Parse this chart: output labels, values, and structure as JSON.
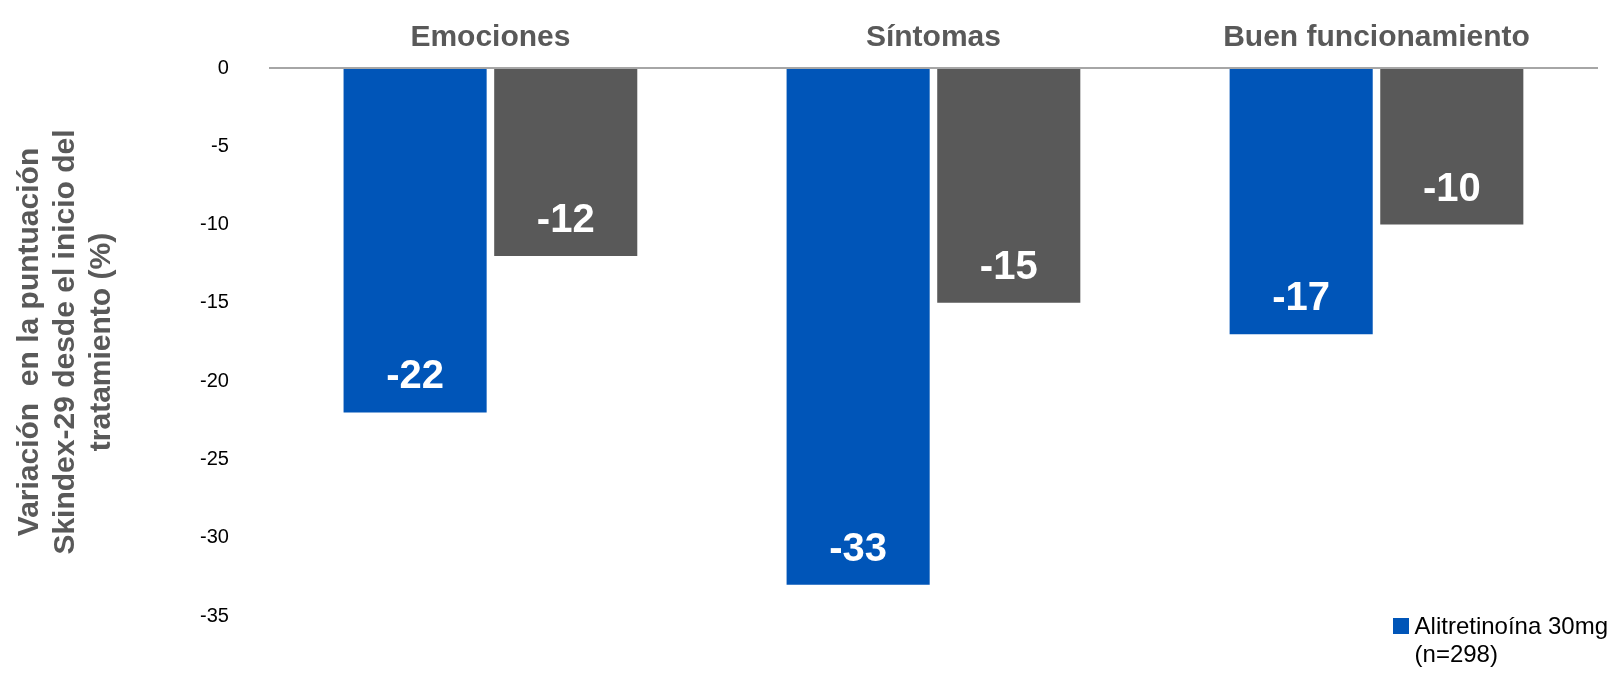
{
  "chart_data": {
    "type": "bar",
    "ylabel": "Variación  en la puntuación\nSkindex-29 desde el inicio del\ntratamiento (%)",
    "categories": [
      "Emociones",
      "Síntomas",
      "Buen funcionamiento"
    ],
    "series": [
      {
        "name": "Alitretinoína 30mg\n(n=298)",
        "color": "#0055b8",
        "values": [
          -22,
          -33,
          -17
        ]
      },
      {
        "color": "#595959",
        "values": [
          -12,
          -15,
          -10
        ]
      }
    ],
    "ylim": [
      -35,
      0
    ],
    "yticks": [
      0,
      -5,
      -10,
      -15,
      -20,
      -25,
      -30,
      -35
    ],
    "grid": false,
    "data_labels": true,
    "legend": "bottom right"
  }
}
